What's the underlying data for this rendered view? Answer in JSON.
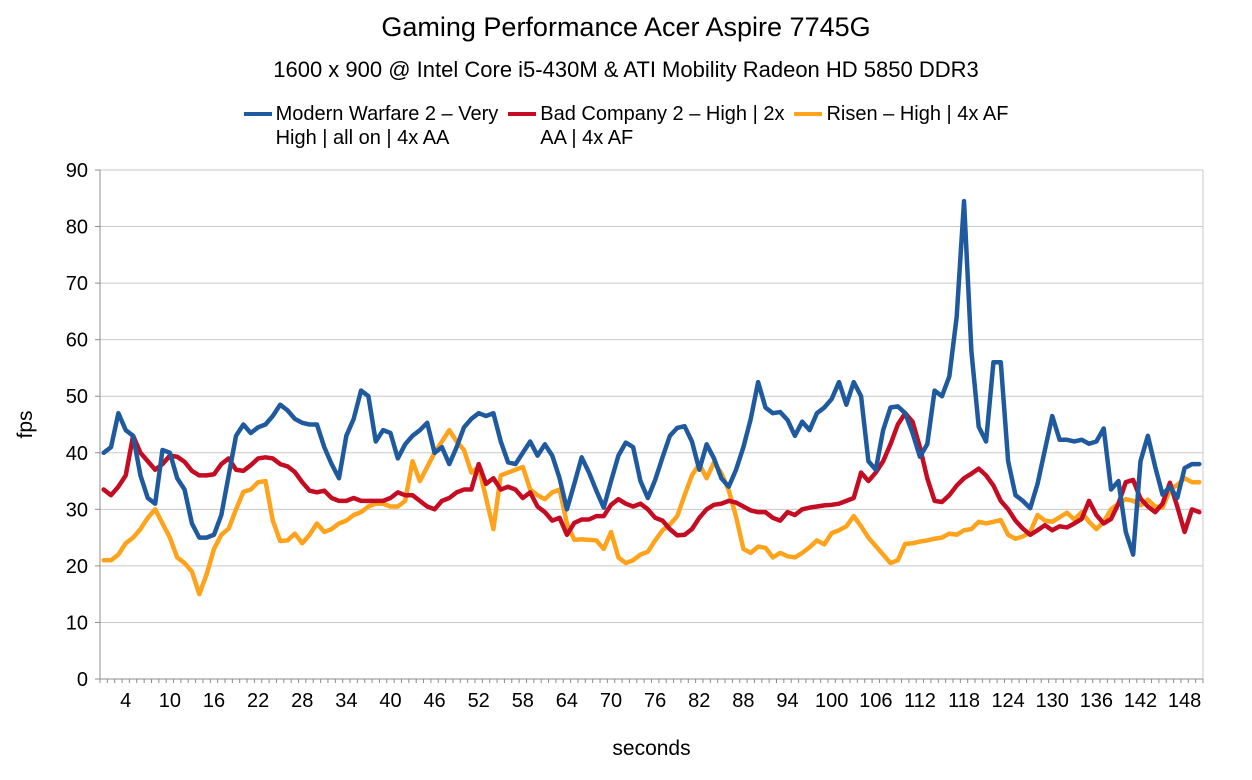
{
  "title": "Gaming Performance Acer Aspire 7745G",
  "subtitle": "1600 x 900 @ Intel Core i5-430M & ATI Mobility Radeon HD 5850 DDR3",
  "legend": {
    "items": [
      {
        "label_line1": "Modern Warfare 2 – Very",
        "label_line2": "High | all on | 4x AA"
      },
      {
        "label_line1": "Bad Company 2 – High | 2x",
        "label_line2": "AA | 4x AF"
      },
      {
        "label_line1": "Risen – High | 4x AF",
        "label_line2": ""
      }
    ]
  },
  "chart_data": {
    "type": "line",
    "title": "Gaming Performance Acer Aspire 7745G",
    "subtitle": "1600 x 900 @ Intel Core i5-430M & ATI Mobility Radeon HD 5850 DDR3",
    "xlabel": "seconds",
    "ylabel": "fps",
    "ylim": [
      0,
      90
    ],
    "ytick_step": 10,
    "x_start": 1,
    "x_count": 150,
    "xtick_labels": [
      4,
      10,
      16,
      22,
      28,
      34,
      40,
      46,
      52,
      58,
      64,
      70,
      76,
      82,
      88,
      94,
      100,
      106,
      112,
      118,
      124,
      130,
      136,
      142,
      148
    ],
    "grid": true,
    "legend_position": "top",
    "grid_color": "#c9c9c9",
    "axis_color": "#8c8c8c",
    "series": [
      {
        "name": "Modern Warfare 2 – Very High | all on | 4x AA",
        "color": "#1f5a9e",
        "values": [
          40,
          41,
          47,
          44,
          43,
          36,
          32,
          31,
          40.5,
          40,
          35.5,
          33.5,
          27.5,
          25,
          25,
          25.5,
          29,
          36,
          43,
          45,
          43.5,
          44.5,
          45,
          46.5,
          48.5,
          47.5,
          46,
          45.3,
          45,
          45,
          41,
          38,
          35.5,
          43,
          46,
          51,
          50,
          42,
          44,
          43.5,
          39,
          41.5,
          43,
          44,
          45.3,
          40,
          41,
          38,
          41,
          44.5,
          46,
          47,
          46.5,
          47,
          42,
          38.3,
          38,
          40,
          42,
          39.5,
          41.5,
          39.5,
          35.5,
          30,
          34.5,
          39.2,
          36.5,
          33.3,
          30.3,
          35,
          39.5,
          41.8,
          41,
          35,
          32,
          35.2,
          39.2,
          43,
          44.4,
          44.7,
          42,
          37,
          41.5,
          39,
          35.5,
          34,
          37,
          41,
          46,
          52.5,
          48,
          47,
          47.2,
          45.8,
          43,
          45.5,
          44,
          47,
          48,
          49.5,
          52.5,
          48.5,
          52.5,
          50,
          38.5,
          37,
          44,
          48,
          48.2,
          47,
          43.5,
          39.3,
          41.5,
          51,
          50,
          53.5,
          64,
          84.5,
          58,
          44.6,
          42,
          56,
          56,
          38.5,
          32.5,
          31.5,
          30.2,
          34.5,
          40.5,
          46.5,
          42.3,
          42.3,
          42,
          42.3,
          41.6,
          42,
          44.3,
          33.5,
          35,
          26,
          22,
          38.5,
          43,
          37.5,
          32.6,
          34,
          32,
          37.3,
          38,
          38
        ]
      },
      {
        "name": "Bad Company 2 – High | 2x AA | 4x AF",
        "color": "#c40c23",
        "values": [
          33.5,
          32.5,
          34,
          36,
          43,
          40,
          38.5,
          37,
          38,
          39.5,
          39.3,
          38.4,
          36.8,
          36,
          36,
          36.2,
          38,
          39,
          37,
          36.8,
          37.8,
          39,
          39.2,
          39,
          38,
          37.6,
          36.6,
          34.8,
          33.3,
          33,
          33.3,
          32,
          31.5,
          31.5,
          32,
          31.5,
          31.5,
          31.5,
          31.5,
          32,
          33,
          32.5,
          32.5,
          31.5,
          30.5,
          30,
          31.5,
          32,
          33,
          33.5,
          33.5,
          38,
          34.5,
          35.5,
          33.5,
          34,
          33.5,
          32,
          33,
          30.5,
          29.5,
          28,
          28.5,
          25.5,
          27.6,
          28.2,
          28.2,
          28.8,
          28.8,
          30.8,
          31.8,
          31,
          30.5,
          31,
          30,
          28.5,
          28,
          26.5,
          25.4,
          25.5,
          26.5,
          28.5,
          30,
          30.8,
          31,
          31.5,
          31.2,
          30.5,
          29.8,
          29.5,
          29.5,
          28.5,
          28,
          29.5,
          29,
          30,
          30.3,
          30.5,
          30.7,
          30.8,
          31,
          31.5,
          32,
          36.5,
          35,
          36.5,
          38.5,
          41.5,
          45,
          47,
          45.5,
          41,
          35.5,
          31.5,
          31.3,
          32.5,
          34.2,
          35.5,
          36.3,
          37.2,
          36,
          34.2,
          31.5,
          30,
          28,
          26.6,
          25.5,
          26.3,
          27.2,
          26.3,
          27,
          26.8,
          27.5,
          28.3,
          31.5,
          29,
          27.5,
          28.3,
          31,
          34.8,
          35.2,
          31.9,
          30.5,
          29.5,
          31,
          34.7,
          30.5,
          26,
          30,
          29.5
        ]
      },
      {
        "name": "Risen – High | 4x AF",
        "color": "#ffa21c",
        "values": [
          21,
          21,
          22,
          24,
          25,
          26.5,
          28.5,
          30,
          27.5,
          25,
          21.5,
          20.5,
          19,
          15,
          18.5,
          23,
          25.5,
          26.6,
          30,
          33.1,
          33.5,
          34.8,
          35,
          28,
          24.4,
          24.5,
          25.7,
          24,
          25.5,
          27.5,
          26,
          26.5,
          27.5,
          28,
          29,
          29.5,
          30.5,
          31,
          31,
          30.5,
          30.5,
          31.5,
          38.5,
          35,
          37.5,
          40,
          42,
          44,
          42,
          40.5,
          36.5,
          37.5,
          32,
          26.5,
          36,
          36.5,
          37,
          37.5,
          33.5,
          32.5,
          31.8,
          33,
          33.5,
          27.5,
          24.6,
          24.7,
          24.6,
          24.5,
          23,
          26,
          21.5,
          20.5,
          21,
          22,
          22.5,
          24.5,
          26.3,
          27.3,
          28.8,
          32.5,
          36,
          38,
          35.5,
          38.3,
          36.4,
          33.4,
          28.7,
          23,
          22.3,
          23.4,
          23.2,
          21.5,
          22.3,
          21.7,
          21.5,
          22.3,
          23.3,
          24.5,
          23.8,
          25.8,
          26.3,
          27,
          28.8,
          27,
          25,
          23.5,
          22,
          20.5,
          21,
          23.9,
          24,
          24.3,
          24.5,
          24.8,
          25,
          25.7,
          25.5,
          26.3,
          26.5,
          27.8,
          27.5,
          27.8,
          28.1,
          25.5,
          24.8,
          25.2,
          26,
          29,
          28,
          27.8,
          28.6,
          29.4,
          28.2,
          29.5,
          27.8,
          26.5,
          27.8,
          30,
          31,
          31.8,
          31.5,
          30.7,
          31.7,
          30.5,
          30.3,
          33.4,
          34.3,
          35.5,
          34.8,
          34.8
        ]
      }
    ]
  }
}
